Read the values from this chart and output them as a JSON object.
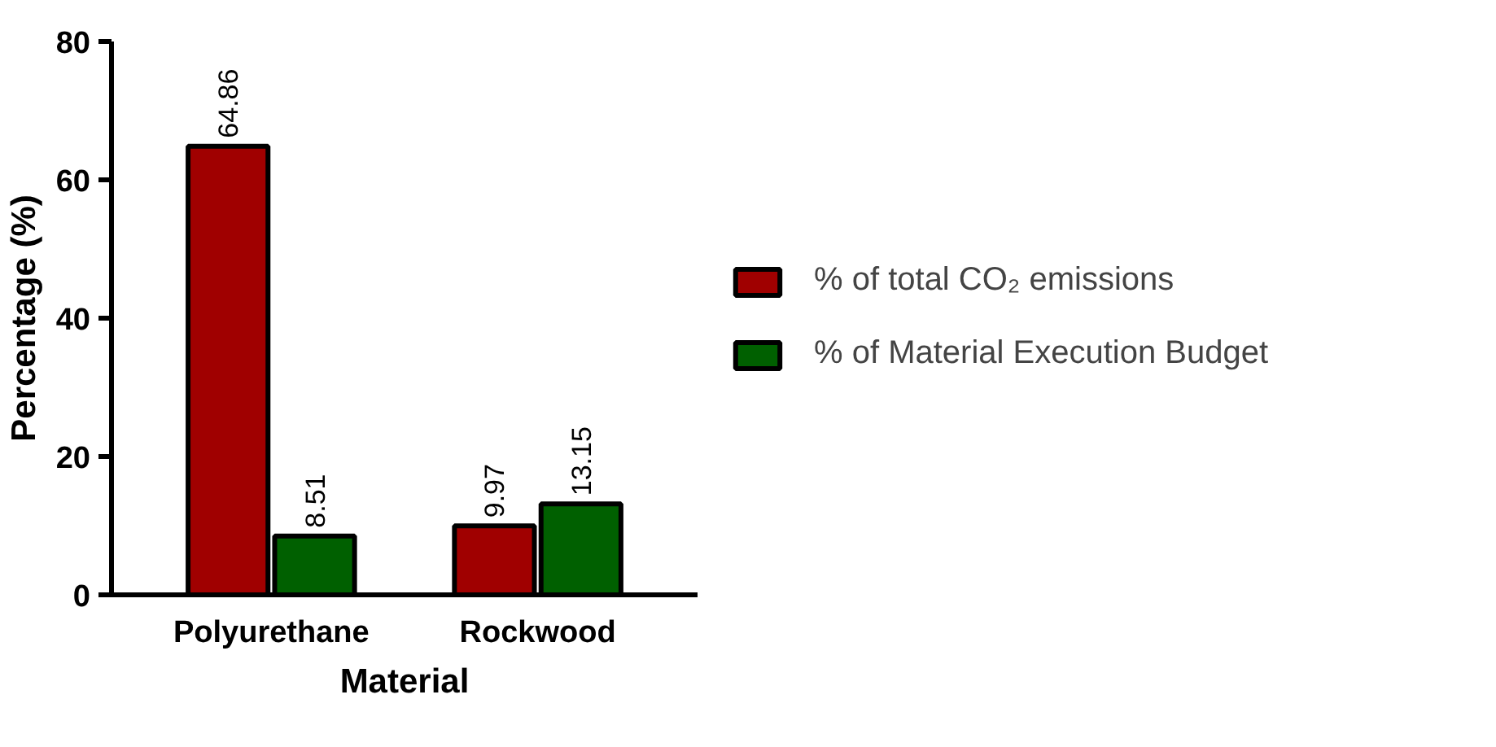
{
  "chart_data": {
    "type": "bar",
    "xlabel": "Material",
    "ylabel": "Percentage (%)",
    "categories": [
      "Polyurethane",
      "Rockwood"
    ],
    "series": [
      {
        "name": "% of total CO₂ emissions",
        "color": "#a00000",
        "values": [
          64.86,
          9.97
        ]
      },
      {
        "name": "% of Material Execution Budget",
        "color": "#006000",
        "values": [
          8.51,
          13.15
        ]
      }
    ],
    "ylim": [
      0,
      80
    ],
    "yticks": [
      0,
      20,
      40,
      60,
      80
    ],
    "data_labels": true,
    "legend": "right",
    "grid": false
  }
}
